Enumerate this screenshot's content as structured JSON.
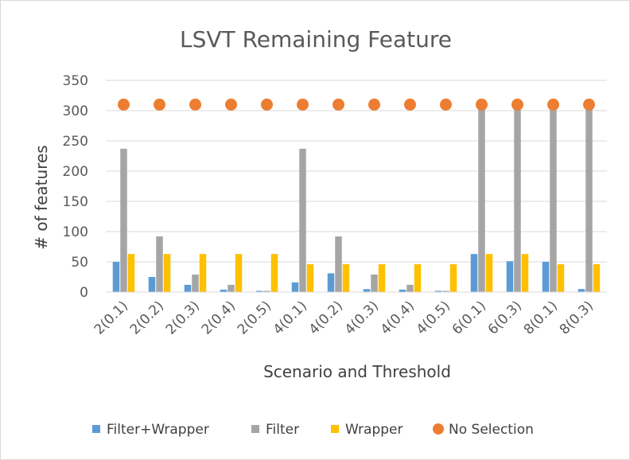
{
  "chart_data": {
    "type": "bar",
    "title": "LSVT Remaining Feature",
    "xlabel": "Scenario and Threshold",
    "ylabel": "# of features",
    "ylim": [
      0,
      350
    ],
    "yticks": [
      0,
      50,
      100,
      150,
      200,
      250,
      300,
      350
    ],
    "grid": true,
    "legend_position": "bottom",
    "categories": [
      "2(0.1)",
      "2(0.2)",
      "2(0.3)",
      "2(0.4)",
      "2(0.5)",
      "4(0.1)",
      "4(0.2)",
      "4(0.3)",
      "4(0.4)",
      "4(0.5)",
      "6(0.1)",
      "6(0.3)",
      "8(0.1)",
      "8(0.3)"
    ],
    "series": [
      {
        "name": "Filter+Wrapper",
        "kind": "bar",
        "color": "#5b9bd5",
        "values": [
          50,
          25,
          12,
          4,
          2,
          16,
          31,
          5,
          4,
          2,
          63,
          51,
          50,
          5
        ]
      },
      {
        "name": "Filter",
        "kind": "bar",
        "color": "#a5a5a5",
        "values": [
          237,
          92,
          29,
          12,
          2,
          237,
          92,
          29,
          12,
          2,
          310,
          310,
          310,
          310
        ]
      },
      {
        "name": "Wrapper",
        "kind": "bar",
        "color": "#ffc000",
        "values": [
          63,
          63,
          63,
          63,
          63,
          46,
          46,
          46,
          46,
          46,
          63,
          63,
          46,
          46
        ]
      },
      {
        "name": "No Selection",
        "kind": "marker",
        "color": "#ed7d31",
        "values": [
          310,
          310,
          310,
          310,
          310,
          310,
          310,
          310,
          310,
          310,
          310,
          310,
          310,
          310
        ]
      }
    ]
  }
}
